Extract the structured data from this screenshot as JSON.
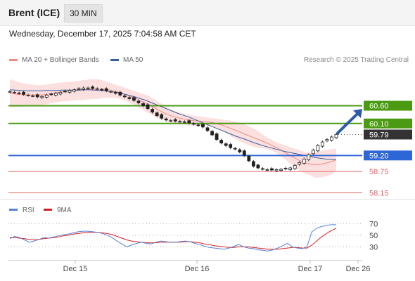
{
  "header": {
    "title": "Brent (ICE)",
    "timeframe": "30 MIN"
  },
  "timestamp": "Wednesday, December 17, 2025 7:04:58 AM CET",
  "legend": {
    "ma20": {
      "label": "MA 20 + Bollinger Bands",
      "color": "#f08a84"
    },
    "ma50": {
      "label": "MA 50",
      "color": "#35609e"
    }
  },
  "credit": "Research © 2025 Trading Central",
  "colors": {
    "resistance": "#4a9a12",
    "pivot": "#2d66d6",
    "support": "#e06666",
    "last": "#333333",
    "rsi": "#5b7fd6",
    "rsi_ma": "#d62020"
  },
  "chart_data": [
    {
      "type": "candlestick",
      "title": "",
      "x_labels": [
        "Dec 15",
        "Dec 16",
        "Dec 17",
        "Dec 26"
      ],
      "ylim": [
        58.0,
        61.5
      ],
      "last_price": "59.79",
      "levels": [
        {
          "value": 60.6,
          "label": "60.60",
          "kind": "resistance"
        },
        {
          "value": 60.1,
          "label": "60.10",
          "kind": "resistance"
        },
        {
          "value": 59.2,
          "label": "59.20",
          "kind": "pivot"
        },
        {
          "value": 58.75,
          "label": "58.75",
          "kind": "support"
        },
        {
          "value": 58.15,
          "label": "58.15",
          "kind": "support"
        }
      ],
      "close": [
        61.0,
        60.98,
        60.95,
        60.92,
        60.9,
        60.88,
        60.85,
        60.86,
        60.9,
        60.92,
        60.95,
        60.98,
        61.0,
        61.03,
        61.05,
        61.08,
        61.1,
        61.1,
        61.09,
        61.08,
        61.05,
        61.02,
        61.0,
        60.95,
        60.9,
        60.85,
        60.8,
        60.75,
        60.68,
        60.6,
        60.52,
        60.42,
        60.32,
        60.25,
        60.2,
        60.18,
        60.17,
        60.16,
        60.15,
        60.12,
        60.08,
        60.05,
        60.0,
        59.9,
        59.78,
        59.65,
        59.55,
        59.48,
        59.42,
        59.38,
        59.3,
        59.2,
        59.05,
        58.9,
        58.85,
        58.82,
        58.8,
        58.79,
        58.8,
        58.81,
        58.82,
        58.85,
        58.92,
        59.0,
        59.1,
        59.22,
        59.35,
        59.48,
        59.58,
        59.65,
        59.72,
        59.79
      ],
      "ma20": [
        60.95,
        60.93,
        60.91,
        60.9,
        60.9,
        60.9,
        60.9,
        60.92,
        60.95,
        60.97,
        60.99,
        61.0,
        61.01,
        61.03,
        61.04,
        61.06,
        61.07,
        61.07,
        61.06,
        61.04,
        61.01,
        60.97,
        60.92,
        60.86,
        60.8,
        60.73,
        60.66,
        60.58,
        60.5,
        60.42,
        60.35,
        60.3,
        60.26,
        60.23,
        60.2,
        60.18,
        60.17,
        60.16,
        60.14,
        60.11,
        60.07,
        60.02,
        59.96,
        59.9,
        59.84,
        59.78,
        59.72,
        59.66,
        59.6,
        59.54,
        59.47,
        59.39,
        59.31,
        59.22,
        59.14,
        59.06,
        59.0,
        58.96,
        58.94,
        58.95,
        58.98,
        59.02,
        59.08
      ],
      "ma50": [
        61.05,
        61.04,
        61.03,
        61.02,
        61.02,
        61.02,
        61.02,
        61.03,
        61.03,
        61.03,
        61.04,
        61.04,
        61.04,
        61.04,
        61.05,
        61.05,
        61.04,
        61.03,
        61.02,
        61.0,
        60.98,
        60.95,
        60.92,
        60.88,
        60.84,
        60.79,
        60.74,
        60.68,
        60.62,
        60.56,
        60.5,
        60.44,
        60.38,
        60.33,
        60.28,
        60.22,
        60.16,
        60.1,
        60.04,
        59.98,
        59.92,
        59.86,
        59.8,
        59.74,
        59.69,
        59.64,
        59.58,
        59.53,
        59.48,
        59.44,
        59.4,
        59.36,
        59.32,
        59.29,
        59.26,
        59.23,
        59.2,
        59.17,
        59.14,
        59.12,
        59.1,
        59.09,
        59.08
      ],
      "bb_upper": [
        61.35,
        61.3,
        61.25,
        61.22,
        61.2,
        61.18,
        61.18,
        61.2,
        61.22,
        61.24,
        61.26,
        61.27,
        61.28,
        61.3,
        61.32,
        61.34,
        61.35,
        61.34,
        61.3,
        61.25,
        61.2,
        61.15,
        61.1,
        61.05,
        61.0,
        60.95,
        60.9,
        60.82,
        60.73,
        60.64,
        60.55,
        60.47,
        60.42,
        60.38,
        60.35,
        60.32,
        60.3,
        60.28,
        60.26,
        60.24,
        60.22,
        60.2,
        60.18,
        60.15,
        60.1,
        60.05,
        59.98,
        59.9,
        59.8,
        59.7,
        59.62,
        59.55,
        59.5,
        59.45,
        59.4,
        59.35,
        59.3,
        59.28,
        59.3,
        59.32,
        59.35,
        59.38,
        59.4
      ],
      "bb_lower": [
        60.55,
        60.56,
        60.57,
        60.58,
        60.6,
        60.62,
        60.62,
        60.64,
        60.68,
        60.7,
        60.72,
        60.73,
        60.74,
        60.76,
        60.76,
        60.78,
        60.79,
        60.8,
        60.82,
        60.83,
        60.82,
        60.79,
        60.74,
        60.67,
        60.6,
        60.51,
        60.42,
        60.34,
        60.27,
        60.2,
        60.15,
        60.13,
        60.1,
        60.08,
        60.05,
        60.04,
        60.04,
        60.04,
        60.02,
        59.98,
        59.92,
        59.84,
        59.74,
        59.65,
        59.58,
        59.51,
        59.46,
        59.42,
        59.4,
        59.38,
        59.32,
        59.23,
        59.12,
        59.0,
        58.88,
        58.77,
        58.7,
        58.64,
        58.58,
        58.58,
        58.61,
        58.66,
        58.76
      ],
      "projection": {
        "from": 59.79,
        "to": 60.45
      }
    },
    {
      "type": "line",
      "title": "",
      "legend": [
        "RSI",
        "9MA"
      ],
      "ylim": [
        10,
        80
      ],
      "ticks": [
        70,
        50,
        30
      ],
      "rsi": [
        44,
        48,
        46,
        42,
        38,
        40,
        43,
        46,
        45,
        47,
        49,
        51,
        52,
        54,
        56,
        57,
        57,
        56,
        55,
        53,
        50,
        46,
        40,
        35,
        30,
        33,
        36,
        38,
        36,
        35,
        38,
        40,
        39,
        38,
        38,
        39,
        40,
        39,
        36,
        34,
        31,
        29,
        28,
        27,
        26,
        28,
        31,
        34,
        30,
        28,
        27,
        25,
        24,
        23,
        25,
        28,
        32,
        36,
        30,
        28,
        27,
        30,
        56,
        62,
        65,
        67,
        68,
        68
      ],
      "rsi_ma": [
        46,
        46,
        45,
        44,
        43,
        42,
        43,
        44,
        45,
        46,
        47,
        49,
        50,
        52,
        53,
        54,
        55,
        55,
        55,
        54,
        53,
        51,
        48,
        45,
        42,
        40,
        39,
        38,
        37,
        37,
        37,
        38,
        38,
        38,
        38,
        38,
        39,
        39,
        38,
        37,
        35,
        34,
        32,
        31,
        30,
        29,
        29,
        30,
        30,
        30,
        29,
        28,
        27,
        26,
        26,
        26,
        27,
        28,
        29,
        29,
        28,
        28,
        33,
        40,
        47,
        53,
        58,
        62
      ]
    }
  ]
}
